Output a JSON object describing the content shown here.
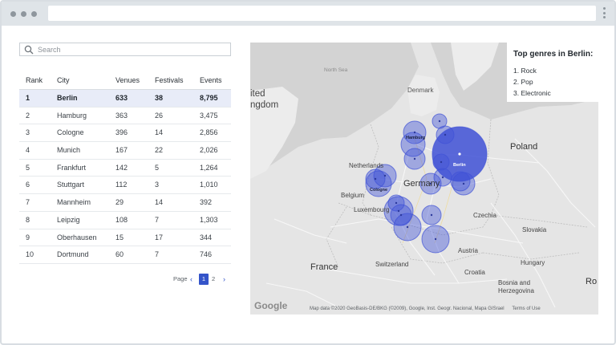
{
  "search": {
    "placeholder": "Search"
  },
  "table": {
    "headers": [
      "Rank",
      "City",
      "Venues",
      "Festivals",
      "Events"
    ],
    "rows": [
      [
        "1",
        "Berlin",
        "633",
        "38",
        "8,795"
      ],
      [
        "2",
        "Hamburg",
        "363",
        "26",
        "3,475"
      ],
      [
        "3",
        "Cologne",
        "396",
        "14",
        "2,856"
      ],
      [
        "4",
        "Munich",
        "167",
        "22",
        "2,026"
      ],
      [
        "5",
        "Frankfurt",
        "142",
        "5",
        "1,264"
      ],
      [
        "6",
        "Stuttgart",
        "112",
        "3",
        "1,010"
      ],
      [
        "7",
        "Mannheim",
        "29",
        "14",
        "392"
      ],
      [
        "8",
        "Leipzig",
        "108",
        "7",
        "1,303"
      ],
      [
        "9",
        "Oberhausen",
        "15",
        "17",
        "344"
      ],
      [
        "10",
        "Dortmund",
        "60",
        "7",
        "746"
      ]
    ],
    "selected_row": 0
  },
  "pagination": {
    "label": "Page",
    "prev": "‹",
    "pages": [
      "1",
      "2"
    ],
    "current": "1",
    "next": "›"
  },
  "map": {
    "labels": {
      "north_sea": "North Sea",
      "denmark": "Denmark",
      "kingdom": "ngdom",
      "united": "ited",
      "poland": "Poland",
      "netherlands": "Netherlands",
      "germany": "Germany",
      "belgium": "Belgium",
      "luxembourg": "Luxembourg",
      "czechia": "Czechia",
      "slovakia": "Slovakia",
      "france": "France",
      "switzerland": "Switzerland",
      "austria": "Austria",
      "hungary": "Hungary",
      "croatia": "Croatia",
      "bosnia": "Bosnia and",
      "herzegovina": "Herzegovina",
      "ro": "Ro",
      "hamburg_bubble": "Hamburg",
      "cologne_bubble": "Cologne",
      "berlin_bubble": "Berlin"
    },
    "bubble_color": "#3f51d6",
    "legend": {
      "title": "Top genres in Berlin:",
      "items": [
        "1. Rock",
        "2. Pop",
        "3. Electronic"
      ]
    },
    "attribution": "Map data ©2020 GeoBasis-DE/BKG (©2009), Google, Inst. Geogr. Nacional, Mapa GISrael",
    "terms": "Terms of Use",
    "google_logo": "Google"
  }
}
